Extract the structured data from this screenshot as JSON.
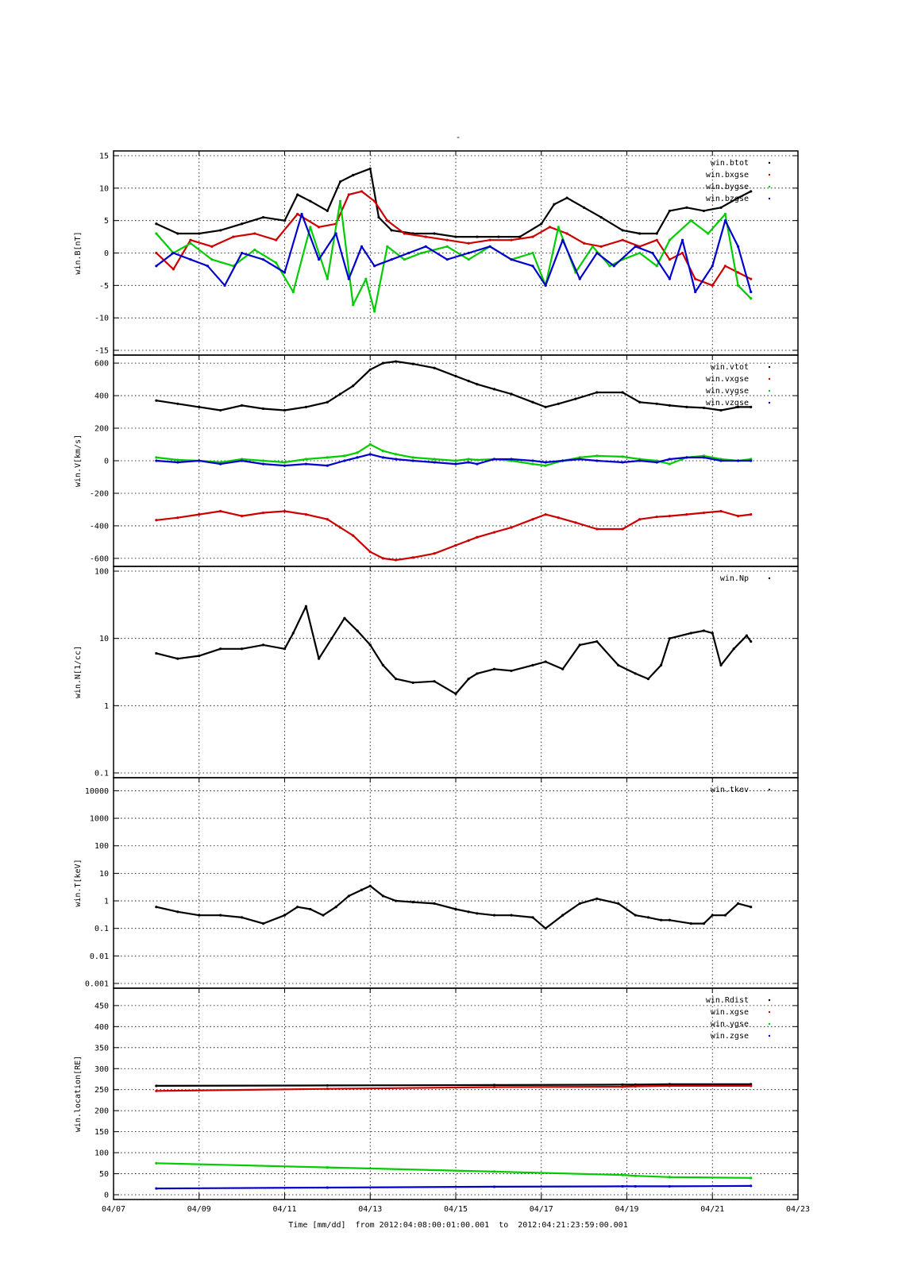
{
  "figure": {
    "top_mark": "-",
    "x_axis_label": "Time [mm/dd]  from 2012:04:08:00:01:00.001  to  2012:04:21:23:59:00.001",
    "x_tick_labels": [
      "04/07",
      "04/09",
      "04/11",
      "04/13",
      "04/15",
      "04/17",
      "04/19",
      "04/21",
      "04/23"
    ],
    "x_range_days": [
      7,
      23
    ]
  },
  "chart_data": [
    {
      "type": "scatter",
      "ylabel": "win.B[nT]",
      "yscale": "linear",
      "ylim": [
        -15,
        15
      ],
      "y_ticks": [
        15,
        10,
        5,
        0,
        -5,
        -10,
        -15
      ],
      "y_tick_labels": [
        "15",
        "10",
        "5",
        "0",
        "-5",
        "-10",
        "-15"
      ],
      "grid": true,
      "legend": "top-right",
      "series": [
        {
          "name": "win.btot",
          "color": "#000000",
          "x": [
            8.0,
            8.5,
            9.0,
            9.5,
            10.0,
            10.5,
            11.0,
            11.3,
            11.6,
            12.0,
            12.3,
            12.6,
            13.0,
            13.2,
            13.5,
            14.0,
            14.5,
            15.0,
            15.5,
            16.0,
            16.5,
            17.0,
            17.3,
            17.6,
            18.0,
            18.4,
            18.9,
            19.3,
            19.7,
            20.0,
            20.4,
            20.8,
            21.2,
            21.6,
            21.9
          ],
          "values": [
            4.5,
            3.0,
            3.0,
            3.5,
            4.5,
            5.5,
            5.0,
            9.0,
            8.0,
            6.5,
            11.0,
            12.0,
            13.0,
            5.5,
            3.5,
            3.0,
            3.0,
            2.5,
            2.5,
            2.5,
            2.5,
            4.5,
            7.5,
            8.5,
            7.0,
            5.5,
            3.5,
            3.0,
            3.0,
            6.5,
            7.0,
            6.5,
            7.0,
            8.5,
            9.5
          ]
        },
        {
          "name": "win.bxgse",
          "color": "#cc0000",
          "x": [
            8.0,
            8.4,
            8.8,
            9.3,
            9.8,
            10.3,
            10.8,
            11.3,
            11.8,
            12.2,
            12.5,
            12.8,
            13.1,
            13.4,
            13.8,
            14.3,
            14.8,
            15.3,
            15.8,
            16.3,
            16.8,
            17.2,
            17.6,
            18.0,
            18.4,
            18.9,
            19.3,
            19.7,
            20.0,
            20.3,
            20.6,
            21.0,
            21.3,
            21.6,
            21.9
          ],
          "values": [
            0.0,
            -2.5,
            2.0,
            1.0,
            2.5,
            3.0,
            2.0,
            6.0,
            4.0,
            4.5,
            9.0,
            9.5,
            8.0,
            5.0,
            3.0,
            2.5,
            2.0,
            1.5,
            2.0,
            2.0,
            2.5,
            4.0,
            3.0,
            1.5,
            1.0,
            2.0,
            1.0,
            2.0,
            -1.0,
            0.0,
            -4.0,
            -5.0,
            -2.0,
            -3.0,
            -4.0
          ]
        },
        {
          "name": "win.bygse",
          "color": "#00cc00",
          "x": [
            8.0,
            8.4,
            8.8,
            9.3,
            9.8,
            10.3,
            10.8,
            11.2,
            11.6,
            12.0,
            12.3,
            12.6,
            12.9,
            13.1,
            13.4,
            13.8,
            14.2,
            14.8,
            15.3,
            15.8,
            16.3,
            16.8,
            17.1,
            17.4,
            17.8,
            18.2,
            18.6,
            18.9,
            19.3,
            19.7,
            20.0,
            20.5,
            20.9,
            21.3,
            21.6,
            21.9
          ],
          "values": [
            3.0,
            0.0,
            1.5,
            -1.0,
            -2.0,
            0.5,
            -1.5,
            -6.0,
            4.0,
            -4.0,
            8.0,
            -8.0,
            -4.0,
            -9.0,
            1.0,
            -1.0,
            0.0,
            1.0,
            -1.0,
            1.0,
            -1.0,
            0.0,
            -5.0,
            4.0,
            -3.0,
            1.0,
            -2.0,
            -1.0,
            0.0,
            -2.0,
            2.0,
            5.0,
            3.0,
            6.0,
            -5.0,
            -7.0
          ]
        },
        {
          "name": "win.bzgse",
          "color": "#0000cc",
          "x": [
            8.0,
            8.4,
            8.8,
            9.2,
            9.6,
            10.0,
            10.5,
            11.0,
            11.4,
            11.8,
            12.2,
            12.5,
            12.8,
            13.1,
            13.5,
            13.9,
            14.3,
            14.8,
            15.3,
            15.8,
            16.3,
            16.8,
            17.1,
            17.5,
            17.9,
            18.3,
            18.7,
            19.2,
            19.6,
            20.0,
            20.3,
            20.6,
            21.0,
            21.3,
            21.6,
            21.9
          ],
          "values": [
            -2.0,
            0.0,
            -1.0,
            -2.0,
            -5.0,
            0.0,
            -1.0,
            -3.0,
            6.0,
            -1.0,
            3.0,
            -4.0,
            1.0,
            -2.0,
            -1.0,
            0.0,
            1.0,
            -1.0,
            0.0,
            1.0,
            -1.0,
            -2.0,
            -5.0,
            2.0,
            -4.0,
            0.0,
            -2.0,
            1.0,
            0.0,
            -4.0,
            2.0,
            -6.0,
            -2.0,
            5.0,
            1.0,
            -6.0
          ]
        }
      ]
    },
    {
      "type": "scatter",
      "ylabel": "win.V[km/s]",
      "yscale": "linear",
      "ylim": [
        -620,
        620
      ],
      "y_ticks": [
        600,
        400,
        200,
        0,
        -200,
        -400,
        -600
      ],
      "y_tick_labels": [
        "600",
        "400",
        "200",
        "0",
        "-200",
        "-400",
        "-600"
      ],
      "grid": true,
      "legend": "top-right",
      "series": [
        {
          "name": "win.vtot",
          "color": "#000000",
          "x": [
            8.0,
            8.5,
            9.0,
            9.5,
            10.0,
            10.5,
            11.0,
            11.5,
            12.0,
            12.3,
            12.6,
            13.0,
            13.3,
            13.6,
            14.0,
            14.5,
            15.0,
            15.3,
            15.5,
            15.9,
            16.3,
            16.8,
            17.1,
            17.4,
            17.8,
            18.3,
            18.9,
            19.3,
            19.7,
            20.0,
            20.4,
            20.8,
            21.2,
            21.6,
            21.9
          ],
          "values": [
            370,
            350,
            330,
            310,
            340,
            320,
            310,
            330,
            360,
            410,
            460,
            560,
            600,
            610,
            595,
            570,
            520,
            490,
            470,
            440,
            410,
            360,
            330,
            350,
            380,
            420,
            420,
            360,
            350,
            340,
            330,
            325,
            310,
            330,
            330
          ]
        },
        {
          "name": "win.vxgse",
          "color": "#cc0000",
          "x": [
            8.0,
            8.5,
            9.0,
            9.5,
            10.0,
            10.5,
            11.0,
            11.5,
            12.0,
            12.3,
            12.6,
            13.0,
            13.3,
            13.6,
            14.0,
            14.5,
            15.0,
            15.3,
            15.5,
            15.9,
            16.3,
            16.8,
            17.1,
            17.4,
            17.8,
            18.3,
            18.9,
            19.3,
            19.7,
            20.0,
            20.4,
            20.8,
            21.2,
            21.6,
            21.9
          ],
          "values": [
            -365,
            -350,
            -330,
            -310,
            -340,
            -320,
            -310,
            -330,
            -360,
            -410,
            -460,
            -560,
            -600,
            -610,
            -595,
            -570,
            -520,
            -490,
            -470,
            -440,
            -410,
            -360,
            -330,
            -350,
            -380,
            -420,
            -420,
            -360,
            -345,
            -340,
            -330,
            -320,
            -310,
            -340,
            -330
          ]
        },
        {
          "name": "win.vygse",
          "color": "#00cc00",
          "x": [
            8.0,
            8.5,
            9.0,
            9.5,
            10.0,
            10.5,
            11.0,
            11.5,
            12.0,
            12.4,
            12.7,
            13.0,
            13.3,
            13.6,
            14.0,
            14.5,
            15.0,
            15.3,
            15.5,
            15.9,
            16.3,
            16.8,
            17.1,
            17.5,
            17.9,
            18.3,
            18.9,
            19.3,
            19.7,
            20.0,
            20.4,
            20.8,
            21.2,
            21.6,
            21.9
          ],
          "values": [
            20,
            5,
            0,
            -10,
            10,
            0,
            -10,
            10,
            20,
            30,
            50,
            100,
            60,
            40,
            20,
            10,
            0,
            10,
            5,
            10,
            0,
            -20,
            -30,
            0,
            20,
            30,
            25,
            10,
            0,
            -20,
            20,
            30,
            10,
            0,
            10
          ]
        },
        {
          "name": "win.vzgse",
          "color": "#0000cc",
          "x": [
            8.0,
            8.5,
            9.0,
            9.5,
            10.0,
            10.5,
            11.0,
            11.5,
            12.0,
            12.4,
            12.7,
            13.0,
            13.3,
            13.6,
            14.0,
            14.5,
            15.0,
            15.3,
            15.5,
            15.9,
            16.3,
            16.8,
            17.1,
            17.5,
            17.9,
            18.3,
            18.9,
            19.3,
            19.7,
            20.0,
            20.4,
            20.8,
            21.2,
            21.6,
            21.9
          ],
          "values": [
            0,
            -10,
            0,
            -20,
            0,
            -20,
            -30,
            -20,
            -30,
            0,
            20,
            40,
            20,
            10,
            0,
            -10,
            -20,
            -10,
            -20,
            10,
            10,
            0,
            -10,
            0,
            10,
            0,
            -10,
            0,
            -10,
            10,
            20,
            20,
            0,
            0,
            0
          ]
        }
      ]
    },
    {
      "type": "scatter",
      "ylabel": "win.N[1/cc]",
      "yscale": "log",
      "ylim": [
        0.1,
        100
      ],
      "y_ticks": [
        100,
        10,
        1,
        0.1
      ],
      "y_tick_labels": [
        "100",
        "10",
        "1",
        "0.1"
      ],
      "grid": true,
      "legend": "top-right",
      "series": [
        {
          "name": "win.Np",
          "color": "#000000",
          "x": [
            8.0,
            8.5,
            9.0,
            9.5,
            10.0,
            10.5,
            11.0,
            11.2,
            11.5,
            11.8,
            12.1,
            12.4,
            12.7,
            13.0,
            13.3,
            13.6,
            14.0,
            14.5,
            15.0,
            15.3,
            15.5,
            15.9,
            16.3,
            16.8,
            17.1,
            17.5,
            17.9,
            18.3,
            18.8,
            19.2,
            19.5,
            19.8,
            20.0,
            20.5,
            20.8,
            21.0,
            21.2,
            21.5,
            21.8,
            21.9
          ],
          "values": [
            6,
            5,
            5.5,
            7,
            7,
            8,
            7,
            12,
            30,
            5,
            10,
            20,
            13,
            8,
            4,
            2.5,
            2.2,
            2.3,
            1.5,
            2.5,
            3,
            3.5,
            3.3,
            4,
            4.5,
            3.5,
            8,
            9,
            4,
            3,
            2.5,
            4,
            10,
            12,
            13,
            12,
            4,
            7,
            11,
            9
          ]
        }
      ]
    },
    {
      "type": "scatter",
      "ylabel": "win.T[keV]",
      "yscale": "log",
      "ylim": [
        0.001,
        20000
      ],
      "y_ticks": [
        10000,
        1000,
        100,
        10,
        1,
        0.1,
        0.01,
        0.001
      ],
      "y_tick_labels": [
        "10000",
        "1000",
        "100",
        "10",
        "1",
        "0.1",
        "0.01",
        "0.001"
      ],
      "grid": true,
      "legend": "top-right",
      "series": [
        {
          "name": "win.tkev",
          "color": "#000000",
          "x": [
            8.0,
            8.5,
            9.0,
            9.5,
            10.0,
            10.5,
            11.0,
            11.3,
            11.6,
            11.9,
            12.2,
            12.5,
            12.8,
            13.0,
            13.3,
            13.6,
            14.0,
            14.5,
            15.0,
            15.3,
            15.5,
            15.9,
            16.3,
            16.8,
            17.1,
            17.5,
            17.9,
            18.3,
            18.8,
            19.2,
            19.5,
            19.8,
            20.0,
            20.5,
            20.8,
            21.0,
            21.3,
            21.6,
            21.9
          ],
          "values": [
            0.6,
            0.4,
            0.3,
            0.3,
            0.25,
            0.15,
            0.3,
            0.6,
            0.5,
            0.3,
            0.6,
            1.5,
            2.5,
            3.5,
            1.5,
            1.0,
            0.9,
            0.8,
            0.5,
            0.4,
            0.35,
            0.3,
            0.3,
            0.25,
            0.1,
            0.3,
            0.8,
            1.2,
            0.8,
            0.3,
            0.25,
            0.2,
            0.2,
            0.15,
            0.15,
            0.3,
            0.3,
            0.8,
            0.6
          ]
        }
      ]
    },
    {
      "type": "scatter",
      "ylabel": "win.location[RE]",
      "yscale": "linear",
      "ylim": [
        0,
        480
      ],
      "y_ticks": [
        450,
        400,
        350,
        300,
        250,
        200,
        150,
        100,
        50,
        0
      ],
      "y_tick_labels": [
        "450",
        "400",
        "350",
        "300",
        "250",
        "200",
        "150",
        "100",
        "50",
        "0"
      ],
      "grid": true,
      "legend": "top-right",
      "series": [
        {
          "name": "win.Rdist",
          "color": "#000000",
          "x": [
            8.0,
            12.0,
            15.9,
            18.9,
            19.2,
            20.0,
            21.9
          ],
          "values": [
            259,
            260,
            261,
            262,
            262,
            263,
            263
          ]
        },
        {
          "name": "win.xgse",
          "color": "#cc0000",
          "x": [
            8.0,
            12.0,
            15.9,
            18.9,
            19.2,
            20.0,
            21.9
          ],
          "values": [
            247,
            252,
            256,
            257,
            258,
            259,
            259
          ]
        },
        {
          "name": "win.ygse",
          "color": "#00cc00",
          "x": [
            8.0,
            12.0,
            15.9,
            18.9,
            19.2,
            20.0,
            21.9
          ],
          "values": [
            75,
            65,
            55,
            47,
            45,
            42,
            40
          ]
        },
        {
          "name": "win.zgse",
          "color": "#0000cc",
          "x": [
            8.0,
            12.0,
            15.9,
            18.9,
            19.2,
            20.0,
            21.9
          ],
          "values": [
            15,
            17,
            19,
            20,
            20,
            20,
            21
          ]
        }
      ]
    }
  ]
}
